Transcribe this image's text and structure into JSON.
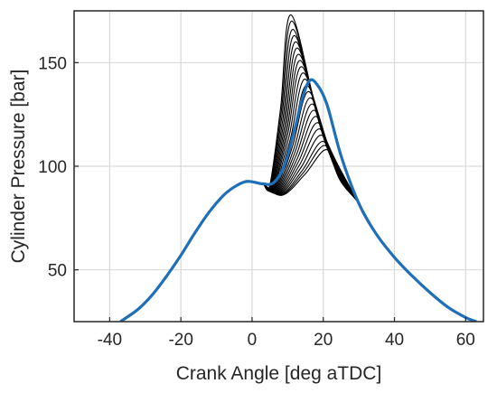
{
  "chart_data": {
    "type": "line",
    "xlabel": "Crank Angle [deg aTDC]",
    "ylabel": "Cylinder Pressure [bar]",
    "xlim": [
      -50,
      65
    ],
    "ylim": [
      25,
      175
    ],
    "xticks": [
      -40,
      -20,
      0,
      20,
      40,
      60
    ],
    "yticks": [
      50,
      100,
      150
    ],
    "grid": true,
    "colors": {
      "cycles": "#000000",
      "mean": "#1f6fb8",
      "grid": "#d9d9d9",
      "axes": "#262626"
    },
    "compression": {
      "x": [
        -37,
        -32,
        -28,
        -24,
        -20,
        -16,
        -12,
        -8,
        -5,
        -2,
        0,
        3,
        5
      ],
      "y": [
        25,
        31,
        38,
        47,
        57,
        68,
        78,
        86,
        90,
        92.5,
        92.5,
        91.5,
        91
      ]
    },
    "expansion": {
      "x": [
        30,
        35,
        40,
        45,
        50,
        55,
        60,
        63
      ],
      "y": [
        82,
        67,
        56,
        47,
        39,
        32,
        27,
        25
      ]
    },
    "cycle_peaks": {
      "peak_x": [
        11,
        11.3,
        11.6,
        12,
        12.4,
        12.8,
        13.2,
        13.6,
        14,
        14.5,
        15,
        15.5,
        16,
        16.5,
        17,
        17.5,
        18,
        18.5,
        19,
        19.5,
        20,
        20.5,
        21
      ],
      "peak_y": [
        173,
        170,
        166,
        163,
        160,
        157,
        154,
        151,
        148,
        145,
        142,
        139,
        136,
        133,
        130,
        127,
        124,
        121,
        118,
        115,
        112,
        110,
        108
      ]
    },
    "series": [
      {
        "x": [
          -37,
          -32,
          -28,
          -24,
          -20,
          -16,
          -12,
          -8,
          -5,
          -2,
          0,
          3,
          6,
          9,
          12,
          14,
          16,
          18,
          21,
          25,
          30,
          35,
          40,
          45,
          50,
          55,
          60,
          63
        ],
        "y": [
          25,
          31,
          38,
          47,
          57,
          68,
          78,
          86,
          90,
          92.5,
          92.5,
          91.5,
          92,
          100,
          118,
          132,
          141,
          140,
          130,
          105,
          82,
          67,
          56,
          47,
          39,
          32,
          27,
          25
        ]
      }
    ]
  }
}
